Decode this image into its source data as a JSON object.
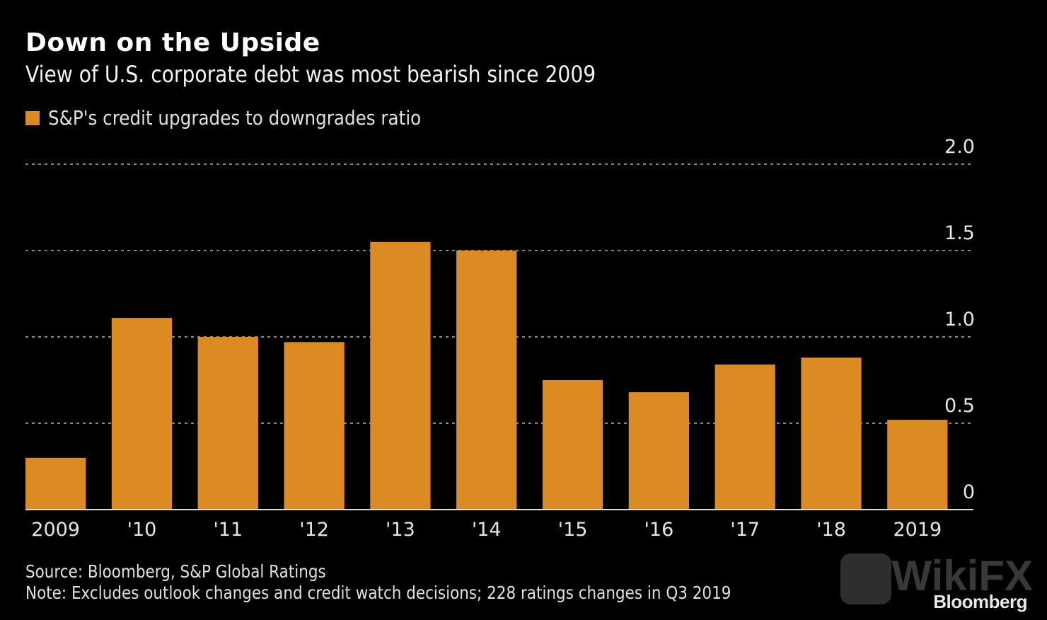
{
  "title": "Down on the Upside",
  "subtitle": "View of U.S. corporate debt was most bearish since 2009",
  "legend": {
    "label": "S&P's credit upgrades to downgrades ratio",
    "color": "#dc8a22"
  },
  "source": "Source: Bloomberg, S&P Global Ratings",
  "note": "Note: Excludes outlook changes and credit watch decisions; 228 ratings changes in Q3 2019",
  "brand": "Bloomberg",
  "watermark": "WikiFX",
  "chart_data": {
    "type": "bar",
    "title": "Down on the Upside",
    "subtitle": "View of U.S. corporate debt was most bearish since 2009",
    "xlabel": "",
    "ylabel": "",
    "categories": [
      "2009",
      "'10",
      "'11",
      "'12",
      "'13",
      "'14",
      "'15",
      "'16",
      "'17",
      "'18",
      "2019"
    ],
    "series": [
      {
        "name": "S&P's credit upgrades to downgrades ratio",
        "color": "#dc8a22",
        "values": [
          0.3,
          1.11,
          1.0,
          0.97,
          1.55,
          1.5,
          0.75,
          0.68,
          0.84,
          0.88,
          0.52
        ]
      }
    ],
    "ylim": [
      0,
      2.0
    ],
    "yticks": [
      0,
      0.5,
      1.0,
      1.5,
      2.0
    ],
    "ytick_labels": [
      "0",
      "0.5",
      "1.0",
      "1.5",
      "2.0"
    ],
    "grid": true,
    "y_axis_position": "right",
    "legend_position": "top-left"
  }
}
